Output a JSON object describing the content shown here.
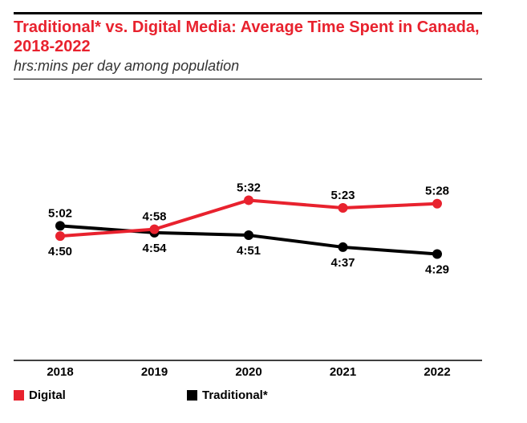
{
  "title": "Traditional* vs. Digital Media: Average Time Spent in Canada, 2018-2022",
  "subtitle": "hrs:mins per day among population",
  "colors": {
    "digital": "#e8222e",
    "traditional": "#000000",
    "title": "#e8222e"
  },
  "chart_data": {
    "type": "line",
    "title": "Traditional* vs. Digital Media: Average Time Spent in Canada, 2018-2022",
    "subtitle": "hrs:mins per day among population",
    "categories": [
      "2018",
      "2019",
      "2020",
      "2021",
      "2022"
    ],
    "series": [
      {
        "name": "Digital",
        "color": "#e8222e",
        "labels": [
          "4:50",
          "4:58",
          "5:32",
          "5:23",
          "5:28"
        ],
        "values": [
          4.8333,
          4.9667,
          5.5333,
          5.3833,
          5.4667
        ]
      },
      {
        "name": "Traditional*",
        "color": "#000000",
        "labels": [
          "5:02",
          "4:54",
          "4:51",
          "4:37",
          "4:29"
        ],
        "values": [
          5.0333,
          4.9,
          4.85,
          4.6167,
          4.4833
        ]
      }
    ],
    "ylim": [
      2.5,
      6.7
    ],
    "grid": false,
    "legend": "bottom-left"
  }
}
